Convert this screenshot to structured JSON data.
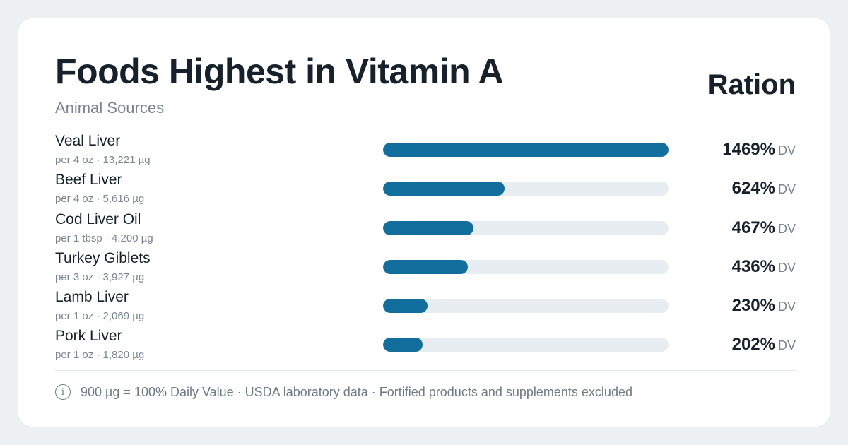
{
  "header": {
    "title": "Foods Highest in Vitamin A",
    "subtitle": "Animal Sources",
    "brand": "Ration"
  },
  "chart_data": {
    "type": "bar",
    "orientation": "horizontal",
    "title": "Foods Highest in Vitamin A",
    "subtitle": "Animal Sources",
    "value_unit": "DV",
    "xlim": [
      0,
      1469
    ],
    "categories": [
      "Veal Liver",
      "Beef Liver",
      "Cod Liver Oil",
      "Turkey Giblets",
      "Lamb Liver",
      "Pork Liver"
    ],
    "values": [
      1469,
      624,
      467,
      436,
      230,
      202
    ],
    "rows": [
      {
        "name": "Veal Liver",
        "detail": "per 4 oz · 13,221 µg",
        "value": 1469,
        "value_label": "1469%"
      },
      {
        "name": "Beef Liver",
        "detail": "per 4 oz · 5,616 µg",
        "value": 624,
        "value_label": "624%"
      },
      {
        "name": "Cod Liver Oil",
        "detail": "per 1 tbsp · 4,200 µg",
        "value": 467,
        "value_label": "467%"
      },
      {
        "name": "Turkey Giblets",
        "detail": "per 3 oz · 3,927 µg",
        "value": 436,
        "value_label": "436%"
      },
      {
        "name": "Lamb Liver",
        "detail": "per 1 oz · 2,069 µg",
        "value": 230,
        "value_label": "230%"
      },
      {
        "name": "Pork Liver",
        "detail": "per 1 oz · 1,820 µg",
        "value": 202,
        "value_label": "202%"
      }
    ],
    "colors": {
      "bar": "#126e9c",
      "track": "#e8edf2"
    }
  },
  "footer": {
    "icon": "info-icon",
    "icon_glyph": "i",
    "note": "900 µg = 100% Daily Value · USDA laboratory data · Fortified products and supplements excluded"
  }
}
